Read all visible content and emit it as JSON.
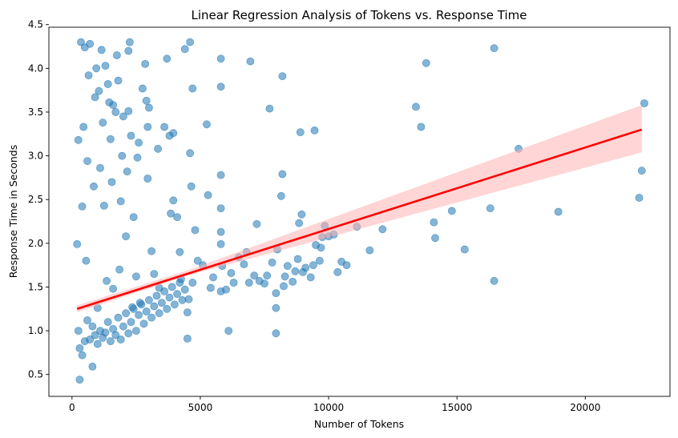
{
  "chart_data": {
    "type": "scatter",
    "title": "Linear Regression Analysis of Tokens vs. Response Time",
    "xlabel": "Number of Tokens",
    "ylabel": "Response Time in Seconds",
    "xlim": [
      -900,
      23300
    ],
    "ylim": [
      0.25,
      4.47
    ],
    "xticks": [
      0,
      5000,
      10000,
      15000,
      20000
    ],
    "xtick_labels": [
      "0",
      "5000",
      "10000",
      "15000",
      "20000"
    ],
    "yticks": [
      0.5,
      1.0,
      1.5,
      2.0,
      2.5,
      3.0,
      3.5,
      4.0,
      4.5
    ],
    "ytick_labels": [
      "0.5",
      "1.0",
      "1.5",
      "2.0",
      "2.5",
      "3.0",
      "3.5",
      "4.0",
      "4.5"
    ],
    "grid": false,
    "colors": {
      "points": "#1f77b4",
      "regression_line": "#ff0000",
      "confidence_band": "#ffb3b3"
    },
    "regression": {
      "x": [
        200,
        22200
      ],
      "y": [
        1.25,
        3.3
      ],
      "ci_upper": [
        1.29,
        3.58
      ],
      "ci_lower": [
        1.21,
        3.04
      ],
      "ci_mid": {
        "x": 4500,
        "upper": 1.69,
        "lower": 1.63
      }
    },
    "series": [
      {
        "points": [
          [
            16450,
            4.23
          ],
          [
            13800,
            4.06
          ],
          [
            17400,
            3.08
          ],
          [
            22300,
            3.6
          ],
          [
            22200,
            2.83
          ],
          [
            22100,
            2.52
          ],
          [
            18950,
            2.36
          ],
          [
            16300,
            2.4
          ],
          [
            16450,
            1.57
          ],
          [
            15300,
            1.93
          ],
          [
            14800,
            2.37
          ],
          [
            14100,
            2.24
          ],
          [
            14150,
            2.06
          ],
          [
            13400,
            3.56
          ],
          [
            13600,
            3.33
          ],
          [
            12100,
            2.16
          ],
          [
            11600,
            1.92
          ],
          [
            11100,
            2.19
          ],
          [
            10700,
            1.75
          ],
          [
            10500,
            1.79
          ],
          [
            10350,
            1.67
          ],
          [
            10200,
            2.1
          ],
          [
            10000,
            2.08
          ],
          [
            9850,
            2.2
          ],
          [
            9750,
            2.07
          ],
          [
            9700,
            1.95
          ],
          [
            9650,
            1.8
          ],
          [
            9500,
            1.98
          ],
          [
            9450,
            3.29
          ],
          [
            9400,
            1.75
          ],
          [
            9300,
            1.61
          ],
          [
            9100,
            1.72
          ],
          [
            9000,
            1.67
          ],
          [
            8900,
            3.27
          ],
          [
            8950,
            2.33
          ],
          [
            8850,
            2.23
          ],
          [
            8800,
            1.82
          ],
          [
            8700,
            1.68
          ],
          [
            8600,
            1.56
          ],
          [
            8400,
            1.74
          ],
          [
            8300,
            1.62
          ],
          [
            8250,
            1.51
          ],
          [
            8200,
            2.79
          ],
          [
            8150,
            2.54
          ],
          [
            8200,
            3.91
          ],
          [
            8000,
            1.93
          ],
          [
            7950,
            1.43
          ],
          [
            7950,
            1.26
          ],
          [
            7950,
            0.97
          ],
          [
            7800,
            1.78
          ],
          [
            7700,
            3.54
          ],
          [
            7600,
            1.63
          ],
          [
            7500,
            1.54
          ],
          [
            7300,
            1.57
          ],
          [
            7200,
            2.22
          ],
          [
            7100,
            1.63
          ],
          [
            6950,
            4.08
          ],
          [
            6900,
            1.55
          ],
          [
            6800,
            1.9
          ],
          [
            6700,
            1.76
          ],
          [
            6500,
            1.84
          ],
          [
            6300,
            1.55
          ],
          [
            6200,
            1.66
          ],
          [
            6100,
            1.0
          ],
          [
            6000,
            1.47
          ],
          [
            5850,
            1.74
          ],
          [
            5800,
            1.45
          ],
          [
            5800,
            1.99
          ],
          [
            5800,
            2.13
          ],
          [
            5800,
            2.4
          ],
          [
            5800,
            2.78
          ],
          [
            5800,
            3.79
          ],
          [
            5800,
            4.11
          ],
          [
            5500,
            1.61
          ],
          [
            5400,
            1.49
          ],
          [
            5300,
            2.55
          ],
          [
            5250,
            3.36
          ],
          [
            5100,
            1.75
          ],
          [
            4900,
            1.8
          ],
          [
            4800,
            2.15
          ],
          [
            4700,
            1.55
          ],
          [
            4700,
            3.77
          ],
          [
            4650,
            2.65
          ],
          [
            4600,
            3.03
          ],
          [
            4600,
            4.3
          ],
          [
            4550,
            1.36
          ],
          [
            4500,
            1.21
          ],
          [
            4500,
            0.91
          ],
          [
            4400,
            4.22
          ],
          [
            4250,
            1.59
          ],
          [
            4200,
            1.9
          ],
          [
            4100,
            2.3
          ],
          [
            3950,
            2.49
          ],
          [
            3950,
            3.26
          ],
          [
            3850,
            2.34
          ],
          [
            3800,
            3.23
          ],
          [
            3700,
            4.11
          ],
          [
            3600,
            3.33
          ],
          [
            3350,
            3.08
          ],
          [
            3400,
            1.49
          ],
          [
            3200,
            1.65
          ],
          [
            3100,
            1.91
          ],
          [
            3000,
            3.55
          ],
          [
            2950,
            3.33
          ],
          [
            2950,
            2.74
          ],
          [
            2900,
            3.63
          ],
          [
            2850,
            4.05
          ],
          [
            2750,
            3.77
          ],
          [
            2650,
            1.32
          ],
          [
            2600,
            3.15
          ],
          [
            2500,
            1.62
          ],
          [
            2550,
            2.98
          ],
          [
            2400,
            2.3
          ],
          [
            2350,
            1.27
          ],
          [
            2300,
            3.23
          ],
          [
            2250,
            4.3
          ],
          [
            2200,
            4.2
          ],
          [
            2200,
            3.51
          ],
          [
            2150,
            2.82
          ],
          [
            2100,
            2.08
          ],
          [
            2000,
            3.45
          ],
          [
            1950,
            3.0
          ],
          [
            1900,
            2.48
          ],
          [
            1850,
            1.7
          ],
          [
            1800,
            3.86
          ],
          [
            1750,
            4.15
          ],
          [
            1700,
            3.5
          ],
          [
            1600,
            3.58
          ],
          [
            1600,
            1.48
          ],
          [
            1550,
            2.7
          ],
          [
            1500,
            3.19
          ],
          [
            1450,
            3.61
          ],
          [
            1400,
            3.82
          ],
          [
            1350,
            1.57
          ],
          [
            1300,
            4.03
          ],
          [
            1250,
            2.43
          ],
          [
            1200,
            3.38
          ],
          [
            1150,
            4.21
          ],
          [
            1100,
            2.86
          ],
          [
            1050,
            3.74
          ],
          [
            1000,
            1.26
          ],
          [
            950,
            4.0
          ],
          [
            900,
            3.67
          ],
          [
            850,
            2.65
          ],
          [
            800,
            0.59
          ],
          [
            700,
            4.28
          ],
          [
            650,
            3.92
          ],
          [
            600,
            2.94
          ],
          [
            550,
            1.8
          ],
          [
            500,
            4.24
          ],
          [
            450,
            3.33
          ],
          [
            400,
            2.42
          ],
          [
            350,
            4.3
          ],
          [
            300,
            0.44
          ],
          [
            250,
            3.18
          ],
          [
            200,
            1.99
          ],
          [
            250,
            1.0
          ],
          [
            300,
            0.8
          ],
          [
            400,
            0.72
          ],
          [
            500,
            0.88
          ],
          [
            600,
            1.12
          ],
          [
            700,
            0.9
          ],
          [
            800,
            1.05
          ],
          [
            900,
            0.95
          ],
          [
            1000,
            0.85
          ],
          [
            1100,
            1.0
          ],
          [
            1200,
            0.92
          ],
          [
            1300,
            0.98
          ],
          [
            1400,
            1.1
          ],
          [
            1500,
            0.88
          ],
          [
            1600,
            1.02
          ],
          [
            1700,
            0.95
          ],
          [
            1800,
            1.15
          ],
          [
            1900,
            0.9
          ],
          [
            2000,
            1.05
          ],
          [
            2100,
            1.2
          ],
          [
            2200,
            0.97
          ],
          [
            2300,
            1.1
          ],
          [
            2400,
            1.25
          ],
          [
            2500,
            1.0
          ],
          [
            2600,
            1.18
          ],
          [
            2700,
            1.3
          ],
          [
            2800,
            1.08
          ],
          [
            2900,
            1.22
          ],
          [
            3000,
            1.35
          ],
          [
            3100,
            1.15
          ],
          [
            3200,
            1.28
          ],
          [
            3300,
            1.4
          ],
          [
            3400,
            1.2
          ],
          [
            3500,
            1.32
          ],
          [
            3600,
            1.45
          ],
          [
            3700,
            1.25
          ],
          [
            3800,
            1.38
          ],
          [
            3900,
            1.5
          ],
          [
            4000,
            1.3
          ],
          [
            4100,
            1.42
          ],
          [
            4200,
            1.55
          ],
          [
            4300,
            1.35
          ],
          [
            4400,
            1.47
          ]
        ]
      }
    ]
  }
}
